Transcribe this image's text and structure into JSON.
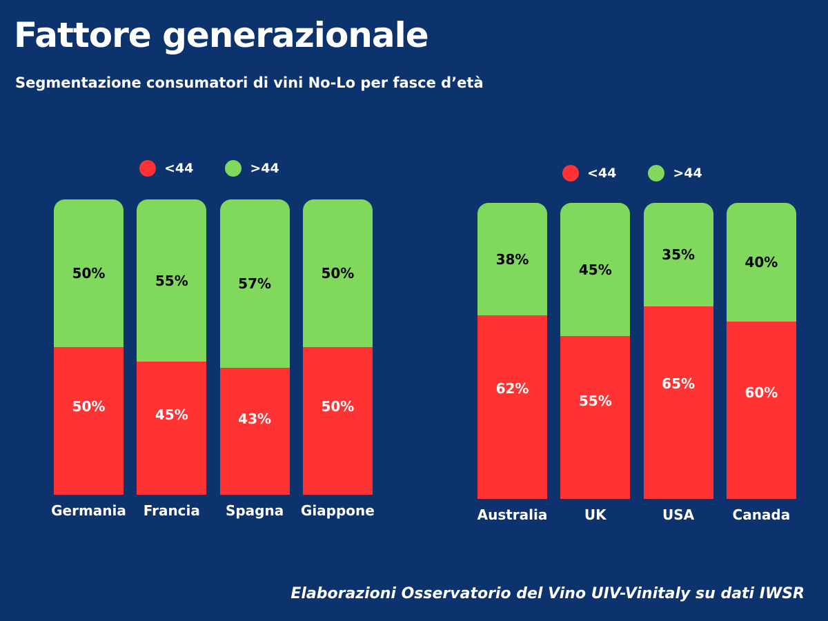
{
  "header": {
    "title": "Fattore generazionale",
    "subtitle": "Segmentazione consumatori di vini No-Lo per fasce d’età"
  },
  "colors": {
    "background": "#0c336d",
    "under44": "#ff3333",
    "over44": "#80d95c",
    "under_label_text": "#ffffff",
    "over_label_text": "#000000"
  },
  "chart_data": [
    {
      "type": "bar",
      "stacked": true,
      "title": "",
      "xlabel": "",
      "ylabel": "",
      "ylim": [
        0,
        100
      ],
      "legend": {
        "position": "top-center",
        "entries": [
          "<44",
          ">44"
        ]
      },
      "categories": [
        "Germania",
        "Francia",
        "Spagna",
        "Giappone"
      ],
      "series": [
        {
          "name": "<44",
          "values": [
            50,
            45,
            43,
            50
          ],
          "labels": [
            "50%",
            "45%",
            "43%",
            "50%"
          ]
        },
        {
          "name": ">44",
          "values": [
            50,
            55,
            57,
            50
          ],
          "labels": [
            "50%",
            "55%",
            "57%",
            "50%"
          ]
        }
      ]
    },
    {
      "type": "bar",
      "stacked": true,
      "title": "",
      "xlabel": "",
      "ylabel": "",
      "ylim": [
        0,
        100
      ],
      "legend": {
        "position": "top-center",
        "entries": [
          "<44",
          ">44"
        ]
      },
      "categories": [
        "Australia",
        "UK",
        "USA",
        "Canada"
      ],
      "series": [
        {
          "name": "<44",
          "values": [
            62,
            55,
            65,
            60
          ],
          "labels": [
            "62%",
            "55%",
            "65%",
            "60%"
          ]
        },
        {
          "name": ">44",
          "values": [
            38,
            45,
            35,
            40
          ],
          "labels": [
            "38%",
            "45%",
            "35%",
            "40%"
          ]
        }
      ]
    }
  ],
  "footer": {
    "source": "Elaborazioni Osservatorio del Vino UIV-Vinitaly su dati IWSR"
  }
}
